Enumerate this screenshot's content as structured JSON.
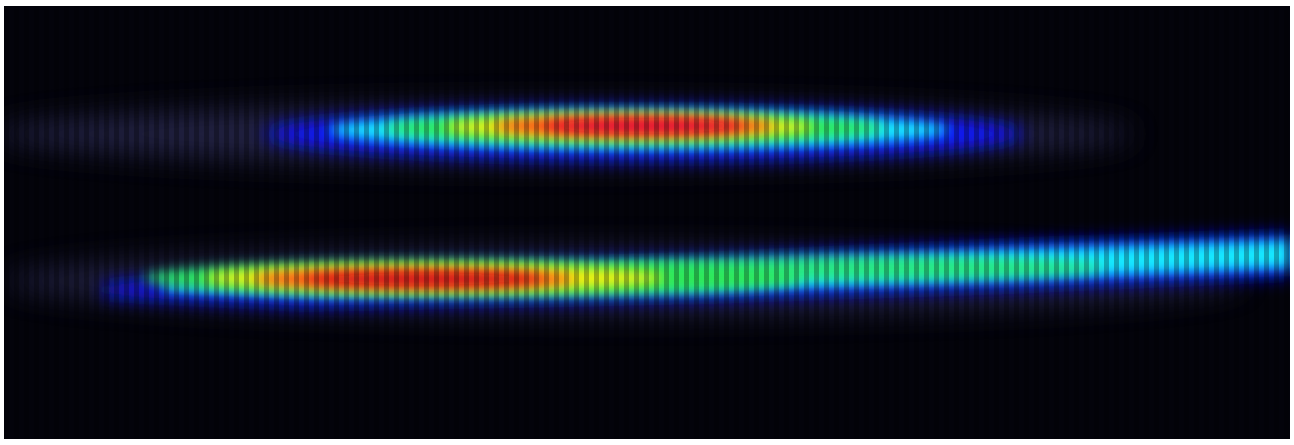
{
  "image": {
    "kind": "false-color intensity image",
    "background_color": "#03030b",
    "colormap": [
      "#2a2a6a",
      "#0a14ff",
      "#18e8ff",
      "#2fe85a",
      "#f5f20f",
      "#ff3a1e",
      "#e0103a"
    ],
    "streaks": [
      {
        "name": "upper-streak",
        "hot_color": "#e0103a"
      },
      {
        "name": "lower-streak",
        "hot_color": "#c80f1e"
      }
    ]
  }
}
